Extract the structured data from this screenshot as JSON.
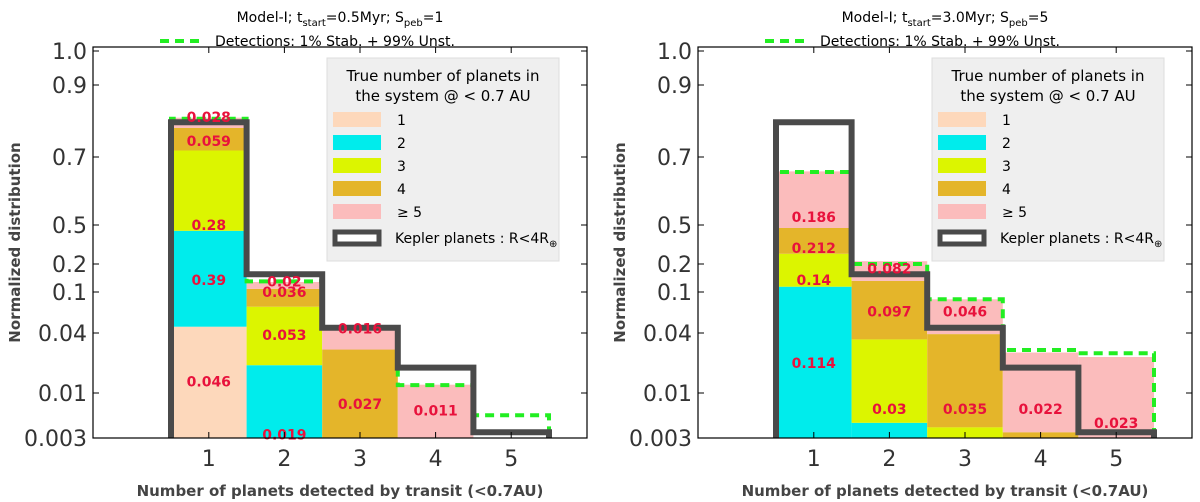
{
  "colors": {
    "n1": "#fdd8bb",
    "n2": "#00ecec",
    "n3": "#dcf500",
    "n4": "#e4b52a",
    "n5": "#fbbcbc",
    "kepler": "#4a4a4a",
    "detect": "#22ee22",
    "label": "#e8123c",
    "legend_bg": "#efefef"
  },
  "chart_data": [
    {
      "type": "bar",
      "stacked": true,
      "title": "Model-I; t_start=0.5Myr; S_peb=1",
      "title_parts": {
        "prefix": "Model-I; t",
        "t_sub": "start",
        "t_val": "=0.5Myr; S",
        "s_sub": "peb",
        "s_val": "=1"
      },
      "detection_label": "Detections: 1% Stab. + 99% Unst.",
      "xlabel": "Number of planets detected by transit (<0.7AU)",
      "ylabel": "Normalized distribution",
      "yticks": [
        "1.0",
        "0.9",
        "0.7",
        "0.5",
        "0.2",
        "0.1",
        "0.04",
        "0.01",
        "0.003"
      ],
      "xticks": [
        "1",
        "2",
        "3",
        "4",
        "5"
      ],
      "legend": {
        "title_line1": "True number of planets in",
        "title_line2": "the system @ < 0.7 AU",
        "entries": [
          "1",
          "2",
          "3",
          "4",
          "≥ 5"
        ],
        "kepler_prefix": "Kepler planets : R",
        "kepler_suffix": "<4R",
        "kepler_sub": "⊕"
      },
      "categories": [
        1,
        2,
        3,
        4,
        5
      ],
      "series": [
        {
          "name": "1",
          "values": [
            0.046,
            0.0,
            0.0,
            0.0,
            0.0
          ]
        },
        {
          "name": "2",
          "values": [
            0.39,
            0.019,
            0.0,
            0.0,
            0.0
          ]
        },
        {
          "name": "3",
          "values": [
            0.28,
            0.053,
            0.0003,
            0.0,
            0.0
          ]
        },
        {
          "name": "4",
          "values": [
            0.059,
            0.036,
            0.027,
            0.0011,
            0.0
          ]
        },
        {
          "name": "≥ 5",
          "values": [
            0.028,
            0.02,
            0.016,
            0.011,
            0.0025
          ]
        }
      ],
      "detections_total": [
        0.8,
        0.13,
        0.045,
        0.012,
        0.0055
      ],
      "kepler": [
        0.79,
        0.155,
        0.045,
        0.018,
        0.0035
      ],
      "annotations": [
        {
          "label": "0.046",
          "x": 1,
          "value": 0.013
        },
        {
          "label": "0.39",
          "x": 1,
          "value": 0.135
        },
        {
          "label": "0.28",
          "x": 1,
          "value": 0.5
        },
        {
          "label": "0.059",
          "x": 1,
          "value": 0.74
        },
        {
          "label": "0.028",
          "x": 1,
          "value": 0.805
        },
        {
          "label": "0.019",
          "x": 2,
          "value": 0.0033
        },
        {
          "label": "0.053",
          "x": 2,
          "value": 0.038
        },
        {
          "label": "0.036",
          "x": 2,
          "value": 0.1
        },
        {
          "label": "0.02",
          "x": 2,
          "value": 0.13
        },
        {
          "label": "0.027",
          "x": 3,
          "value": 0.0075
        },
        {
          "label": "0.016",
          "x": 3,
          "value": 0.044
        },
        {
          "label": "0.011",
          "x": 4,
          "value": 0.0063
        }
      ]
    },
    {
      "type": "bar",
      "stacked": true,
      "title": "Model-I; t_start=3.0Myr; S_peb=5",
      "title_parts": {
        "prefix": "Model-I; t",
        "t_sub": "start",
        "t_val": "=3.0Myr; S",
        "s_sub": "peb",
        "s_val": "=5"
      },
      "detection_label": "Detections: 1% Stab. + 99% Unst.",
      "xlabel": "Number of planets detected by transit (<0.7AU)",
      "ylabel": "Normalized distribution",
      "yticks": [
        "1.0",
        "0.9",
        "0.7",
        "0.5",
        "0.2",
        "0.1",
        "0.04",
        "0.01",
        "0.003"
      ],
      "xticks": [
        "1",
        "2",
        "3",
        "4",
        "5"
      ],
      "legend": {
        "title_line1": "True number of planets in",
        "title_line2": "the system @ < 0.7 AU",
        "entries": [
          "1",
          "2",
          "3",
          "4",
          "≥ 5"
        ],
        "kepler_prefix": "Kepler planets : R",
        "kepler_suffix": "<4R",
        "kepler_sub": "⊕"
      },
      "categories": [
        1,
        2,
        3,
        4,
        5
      ],
      "series": [
        {
          "name": "1",
          "values": [
            0.0,
            0.0,
            0.0,
            0.0,
            0.0
          ]
        },
        {
          "name": "2",
          "values": [
            0.114,
            0.0045,
            0.0,
            0.0,
            0.0
          ]
        },
        {
          "name": "3",
          "values": [
            0.14,
            0.03,
            0.004,
            0.0,
            0.0
          ]
        },
        {
          "name": "4",
          "values": [
            0.212,
            0.097,
            0.035,
            0.0035,
            0.0
          ]
        },
        {
          "name": "≥ 5",
          "values": [
            0.186,
            0.082,
            0.046,
            0.022,
            0.023
          ]
        }
      ],
      "detections_total": [
        0.65,
        0.2,
        0.085,
        0.027,
        0.025
      ],
      "kepler": [
        0.79,
        0.155,
        0.045,
        0.018,
        0.0035
      ],
      "annotations": [
        {
          "label": "0.114",
          "x": 1,
          "value": 0.02
        },
        {
          "label": "0.14",
          "x": 1,
          "value": 0.135
        },
        {
          "label": "0.212",
          "x": 1,
          "value": 0.29
        },
        {
          "label": "0.186",
          "x": 1,
          "value": 0.52
        },
        {
          "label": "0.03",
          "x": 2,
          "value": 0.0065
        },
        {
          "label": "0.097",
          "x": 2,
          "value": 0.065
        },
        {
          "label": "0.082",
          "x": 2,
          "value": 0.18
        },
        {
          "label": "0.035",
          "x": 3,
          "value": 0.0065
        },
        {
          "label": "0.046",
          "x": 3,
          "value": 0.065
        },
        {
          "label": "0.022",
          "x": 4,
          "value": 0.0065
        },
        {
          "label": "0.023",
          "x": 5,
          "value": 0.0045
        }
      ]
    }
  ]
}
